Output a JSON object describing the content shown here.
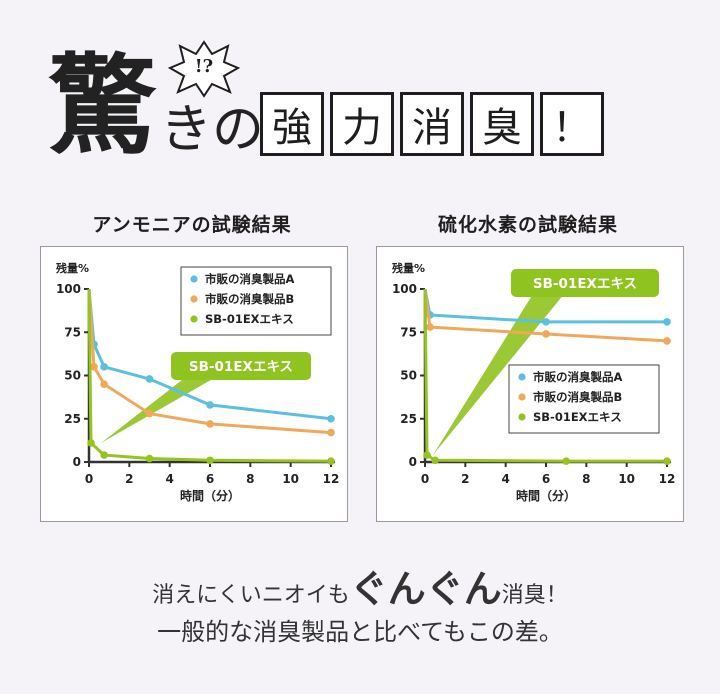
{
  "header": {
    "big_char": "驚",
    "kino": "きの",
    "burst": "!?",
    "title_boxes": [
      "強",
      "力",
      "消",
      "臭",
      "！"
    ]
  },
  "charts_meta": [
    {
      "heading": "アンモニアの試験結果",
      "legend_pos": "top-right",
      "callout": "SB-01EXエキス"
    },
    {
      "heading": "硫化水素の試験結果",
      "legend_pos": "bottom-right",
      "callout": "SB-01EXエキス"
    }
  ],
  "colors": {
    "series_a": "#5bc0e0",
    "series_b": "#f0a85a",
    "series_c": "#96c41e",
    "callout": "#8fc31f",
    "axis": "#333333"
  },
  "chart_data": [
    {
      "type": "line",
      "title": "アンモニアの試験結果",
      "ylabel": "残量%",
      "xlabel": "時間（分）",
      "ylim": [
        0,
        100
      ],
      "xlim": [
        0,
        12
      ],
      "xticks": [
        0,
        2,
        4,
        6,
        8,
        10,
        12
      ],
      "yticks": [
        0,
        25,
        50,
        75,
        100
      ],
      "grid": false,
      "legend": "top-right",
      "series": [
        {
          "name": "市販の消臭製品A",
          "x": [
            0,
            0.25,
            0.75,
            3,
            6,
            12
          ],
          "y": [
            100,
            68,
            55,
            48,
            33,
            25
          ]
        },
        {
          "name": "市販の消臭製品B",
          "x": [
            0,
            0.25,
            0.75,
            3,
            6,
            12
          ],
          "y": [
            100,
            55,
            45,
            28,
            22,
            17
          ]
        },
        {
          "name": "SB-01EXエキス",
          "x": [
            0,
            0.1,
            0.75,
            3,
            6,
            12
          ],
          "y": [
            100,
            11,
            4,
            2,
            1,
            0.5
          ]
        }
      ]
    },
    {
      "type": "line",
      "title": "硫化水素の試験結果",
      "ylabel": "残量%",
      "xlabel": "時間（分）",
      "ylim": [
        0,
        100
      ],
      "xlim": [
        0,
        12
      ],
      "xticks": [
        0,
        2,
        4,
        6,
        8,
        10,
        12
      ],
      "yticks": [
        0,
        25,
        50,
        75,
        100
      ],
      "grid": false,
      "legend": "bottom-right",
      "series": [
        {
          "name": "市販の消臭製品A",
          "x": [
            0,
            0.25,
            6,
            12
          ],
          "y": [
            100,
            85,
            81,
            81
          ]
        },
        {
          "name": "市販の消臭製品B",
          "x": [
            0,
            0.25,
            6,
            12
          ],
          "y": [
            100,
            78,
            74,
            70
          ]
        },
        {
          "name": "SB-01EXエキス",
          "x": [
            0,
            0.1,
            0.5,
            7,
            12
          ],
          "y": [
            100,
            4,
            1,
            0.5,
            0.5
          ]
        }
      ]
    }
  ],
  "footer": {
    "line1_pre": "消えにくいニオイも",
    "line1_big": "ぐんぐん",
    "line1_post": "消臭！",
    "line2": "一般的な消臭製品と比べてもこの差。"
  }
}
